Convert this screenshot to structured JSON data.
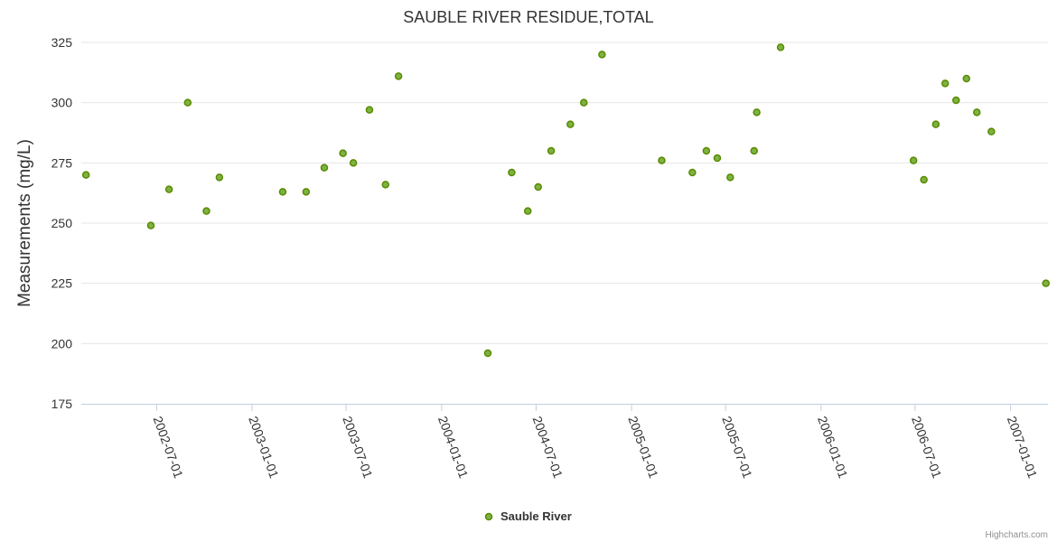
{
  "chart_data": {
    "type": "scatter",
    "title": "SAUBLE RIVER RESIDUE,TOTAL",
    "xlabel": "",
    "ylabel": "Measurements (mg/L)",
    "ylim": [
      175,
      325
    ],
    "yticks": [
      175,
      200,
      225,
      250,
      275,
      300,
      325
    ],
    "xlim": [
      "2002-02-06",
      "2007-03-14"
    ],
    "xticks": [
      "2002-07-01",
      "2003-01-01",
      "2003-07-01",
      "2004-01-01",
      "2004-07-01",
      "2005-01-01",
      "2005-07-01",
      "2006-01-01",
      "2006-07-01",
      "2007-01-01"
    ],
    "legend_position": "bottom-center",
    "series": [
      {
        "name": "Sauble River",
        "color": "#7cb342",
        "stroke": "#5a8a00",
        "points": [
          {
            "x": "2002-02-15",
            "y": 270
          },
          {
            "x": "2002-06-20",
            "y": 249
          },
          {
            "x": "2002-07-25",
            "y": 264
          },
          {
            "x": "2002-08-30",
            "y": 300
          },
          {
            "x": "2002-10-05",
            "y": 255
          },
          {
            "x": "2002-10-30",
            "y": 269
          },
          {
            "x": "2003-03-01",
            "y": 263
          },
          {
            "x": "2003-04-15",
            "y": 263
          },
          {
            "x": "2003-05-20",
            "y": 273
          },
          {
            "x": "2003-06-25",
            "y": 279
          },
          {
            "x": "2003-07-15",
            "y": 275
          },
          {
            "x": "2003-08-15",
            "y": 297
          },
          {
            "x": "2003-09-15",
            "y": 266
          },
          {
            "x": "2003-10-10",
            "y": 311
          },
          {
            "x": "2004-03-30",
            "y": 196
          },
          {
            "x": "2004-05-15",
            "y": 271
          },
          {
            "x": "2004-06-15",
            "y": 255
          },
          {
            "x": "2004-07-05",
            "y": 265
          },
          {
            "x": "2004-07-30",
            "y": 280
          },
          {
            "x": "2004-09-05",
            "y": 291
          },
          {
            "x": "2004-10-01",
            "y": 300
          },
          {
            "x": "2004-11-05",
            "y": 320
          },
          {
            "x": "2005-02-28",
            "y": 276
          },
          {
            "x": "2005-04-28",
            "y": 271
          },
          {
            "x": "2005-05-25",
            "y": 280
          },
          {
            "x": "2005-06-15",
            "y": 277
          },
          {
            "x": "2005-07-10",
            "y": 269
          },
          {
            "x": "2005-08-25",
            "y": 280
          },
          {
            "x": "2005-08-30",
            "y": 296
          },
          {
            "x": "2005-10-15",
            "y": 323
          },
          {
            "x": "2006-06-28",
            "y": 276
          },
          {
            "x": "2006-07-18",
            "y": 268
          },
          {
            "x": "2006-08-10",
            "y": 291
          },
          {
            "x": "2006-08-28",
            "y": 308
          },
          {
            "x": "2006-09-18",
            "y": 301
          },
          {
            "x": "2006-10-08",
            "y": 310
          },
          {
            "x": "2006-10-28",
            "y": 296
          },
          {
            "x": "2006-11-25",
            "y": 288
          },
          {
            "x": "2007-03-10",
            "y": 225
          }
        ]
      }
    ]
  },
  "credit": "Highcharts.com"
}
